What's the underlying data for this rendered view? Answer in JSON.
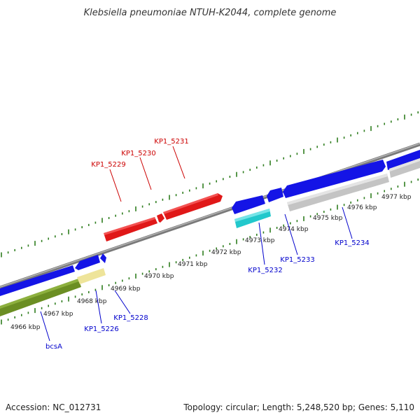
{
  "title": "Klebsiella pneumoniae NTUH-K2044, complete genome",
  "footer": {
    "accession": "Accession: NC_012731",
    "summary": "Topology: circular; Length: 5,248,520 bp; Genes: 5,110"
  },
  "colors": {
    "backbone": "#888888",
    "ticks": "#2e7d1e",
    "forward_gene": "#e01818",
    "reverse_gene": "#1414e6",
    "rna": "#22c8cc",
    "cds_feature": "#6b8e23",
    "pseudo_feature": "#eee49a",
    "grey_feature": "#c4c4c4",
    "forward_label": "#cc0000",
    "reverse_label": "#0000cc"
  },
  "kbp_labels": [
    "4966 kbp",
    "4967 kbp",
    "4968 kbp",
    "4969 kbp",
    "4970 kbp",
    "4971 kbp",
    "4972 kbp",
    "4973 kbp",
    "4974 kbp",
    "4975 kbp",
    "4976 kbp",
    "4977 kbp"
  ],
  "gene_labels": {
    "kp1_5229": "KP1_5229",
    "kp1_5230": "KP1_5230",
    "kp1_5231": "KP1_5231",
    "kp1_5232": "KP1_5232",
    "kp1_5233": "KP1_5233",
    "kp1_5234": "KP1_5234",
    "kp1_5226": "KP1_5226",
    "kp1_5228": "KP1_5228",
    "bcsa": "bcsA"
  }
}
